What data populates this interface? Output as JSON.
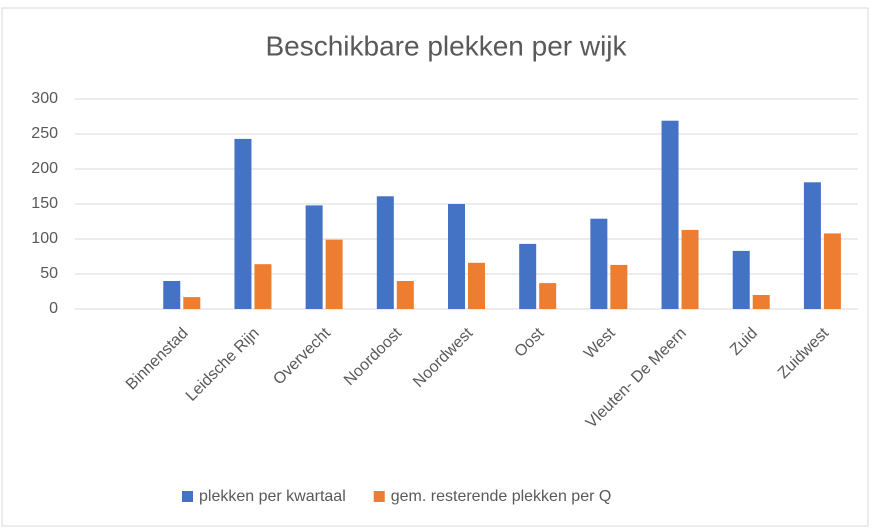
{
  "chart_data": {
    "type": "bar",
    "title": "Beschikbare plekken per wijk",
    "categories": [
      null,
      "Binnenstad",
      "Leidsche Rijn",
      "Overvecht",
      "Noordoost",
      "Noordwest",
      "Oost",
      "West",
      "Vleuten- De Meern",
      "Zuid",
      "Zuidwest"
    ],
    "series": [
      {
        "name": "plekken per kwartaal",
        "color": "#4472c4",
        "values": [
          null,
          40,
          243,
          148,
          161,
          150,
          93,
          129,
          269,
          83,
          181
        ]
      },
      {
        "name": "gem. resterende plekken per Q",
        "color": "#ed7d31",
        "values": [
          null,
          17,
          64,
          99,
          40,
          66,
          37,
          63,
          113,
          20,
          108
        ]
      }
    ],
    "ylim": [
      0,
      300
    ],
    "yticks": [
      0,
      50,
      100,
      150,
      200,
      250,
      300
    ],
    "grid": true,
    "legend": "bottom"
  }
}
